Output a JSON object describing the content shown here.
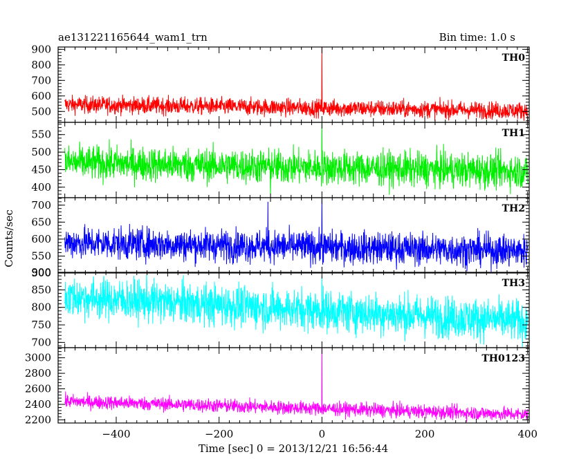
{
  "header": {
    "title": "ae131221165644_wam1_trn",
    "bin_time": "Bin time: 1.0 s"
  },
  "chart_data": {
    "type": "line",
    "xlabel": "Time [sec] 0 = 2013/12/21 16:56:44",
    "ylabel": "Counts/sec",
    "xlim": [
      -513,
      403
    ],
    "x_ticks": [
      -400,
      -200,
      0,
      200,
      400
    ],
    "x_range_data": [
      -500,
      400
    ],
    "grid": false,
    "panels": [
      {
        "label": "TH0",
        "color": "#ff0000",
        "ylim": [
          430,
          915
        ],
        "y_ticks": [
          500,
          600,
          700,
          800,
          900
        ],
        "start_level": 545,
        "end_level": 505,
        "noise": 28,
        "features": [
          {
            "x": 0,
            "value": 915
          }
        ]
      },
      {
        "label": "TH1",
        "color": "#00ee00",
        "ylim": [
          370,
          585
        ],
        "y_ticks": [
          400,
          450,
          500,
          550
        ],
        "start_level": 470,
        "end_level": 445,
        "noise": 25,
        "features": [
          {
            "x": -100,
            "value": 375
          },
          {
            "x": 0,
            "value": 585
          }
        ]
      },
      {
        "label": "TH2",
        "color": "#0000ff",
        "ylim": [
          500,
          722
        ],
        "y_ticks": [
          500,
          550,
          600,
          650,
          700
        ],
        "start_level": 590,
        "end_level": 565,
        "noise": 24,
        "features": [
          {
            "x": -105,
            "value": 710
          },
          {
            "x": 0,
            "value": 722
          }
        ]
      },
      {
        "label": "TH3",
        "color": "#00ffff",
        "ylim": [
          685,
          900
        ],
        "y_ticks": [
          700,
          750,
          800,
          850,
          900
        ],
        "start_level": 830,
        "end_level": 760,
        "noise": 30,
        "features": [
          {
            "x": 0,
            "value": 890
          }
        ]
      },
      {
        "label": "TH0123",
        "color": "#ff00ff",
        "ylim": [
          2160,
          3130
        ],
        "y_ticks": [
          2200,
          2400,
          2600,
          2800,
          3000
        ],
        "start_level": 2440,
        "end_level": 2270,
        "noise": 45,
        "features": [
          {
            "x": 0,
            "value": 3130
          }
        ]
      }
    ]
  }
}
